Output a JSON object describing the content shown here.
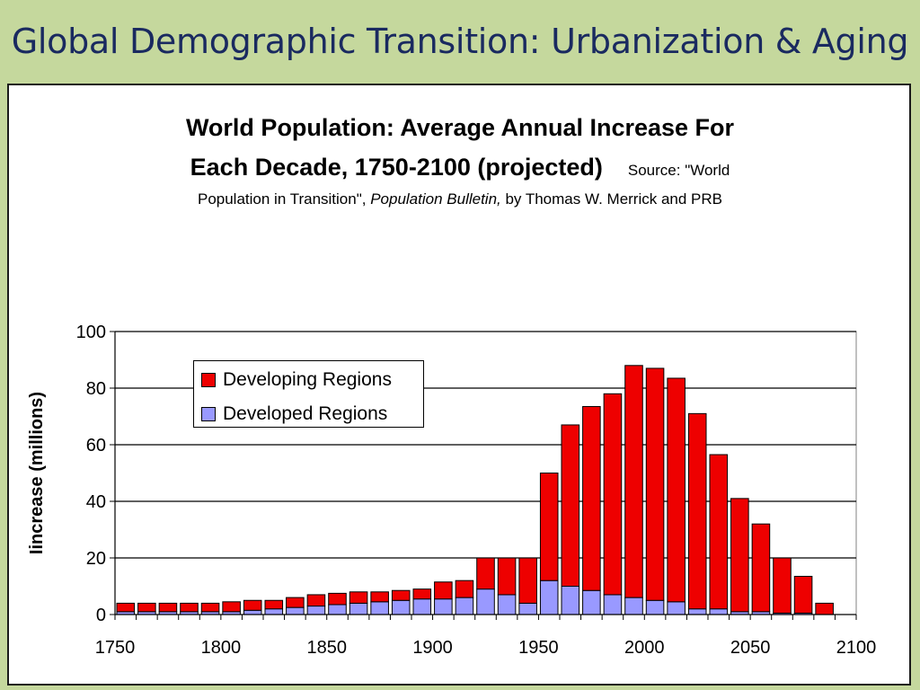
{
  "slide": {
    "title": "Global Demographic Transition: Urbanization & Aging"
  },
  "chart_data": {
    "type": "bar",
    "stacked": true,
    "title_line1": "World Population: Average Annual Increase For",
    "title_line2": "Each Decade, 1750-2100 (projected)",
    "source_prefix": "Source:  \"World",
    "subtitle_part1": "Population in Transition\", ",
    "subtitle_italic": "Population Bulletin,",
    "subtitle_part2": " by Thomas W. Merrick and PRB",
    "ylabel": "Iincrease (millions)",
    "xlabel": "",
    "xlim": [
      1750,
      2100
    ],
    "ylim": [
      0,
      100
    ],
    "xticks": [
      1750,
      1800,
      1850,
      1900,
      1950,
      2000,
      2050,
      2100
    ],
    "yticks": [
      0,
      20,
      40,
      60,
      80,
      100
    ],
    "grid": "horizontal",
    "legend_position": "top-left",
    "x": [
      1750,
      1760,
      1770,
      1780,
      1790,
      1800,
      1810,
      1820,
      1830,
      1840,
      1850,
      1860,
      1870,
      1880,
      1890,
      1900,
      1910,
      1920,
      1930,
      1940,
      1950,
      1960,
      1970,
      1980,
      1990,
      2000,
      2010,
      2020,
      2030,
      2040,
      2050,
      2060,
      2070,
      2080
    ],
    "series": [
      {
        "name": "Developed Regions",
        "color": "#9999ff",
        "values": [
          1,
          1,
          1,
          1,
          1,
          1,
          1.5,
          2,
          2.5,
          3,
          3.5,
          4,
          4.5,
          5,
          5.5,
          5.5,
          6,
          9,
          7,
          4,
          12,
          10,
          8.5,
          7,
          6,
          5,
          4.5,
          2,
          2,
          1,
          1,
          0.5,
          0.5,
          0
        ]
      },
      {
        "name": "Developing Regions",
        "color": "#ee0000",
        "values": [
          3,
          3,
          3,
          3,
          3,
          3.5,
          3.5,
          3,
          3.5,
          4,
          4,
          4,
          3.5,
          3.5,
          3.5,
          6,
          6,
          11,
          13,
          16,
          38,
          57,
          65,
          71,
          82,
          82,
          79,
          69,
          54.5,
          40,
          31,
          19.5,
          13,
          4
        ]
      }
    ]
  }
}
